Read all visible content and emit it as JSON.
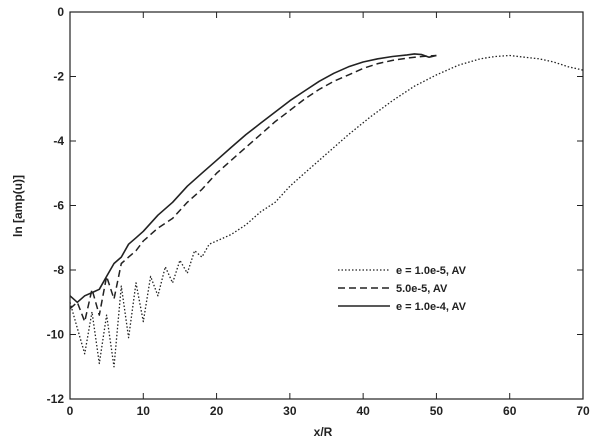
{
  "chart_data": {
    "type": "line",
    "title": "",
    "xlabel": "x/R",
    "ylabel": "ln [amp(u)]",
    "xlim": [
      0,
      70
    ],
    "ylim": [
      -12,
      0
    ],
    "xticks": [
      "0",
      "10",
      "20",
      "30",
      "40",
      "50",
      "60",
      "70"
    ],
    "yticks": [
      "0",
      "-2",
      "-4",
      "-6",
      "-8",
      "-10",
      "-12"
    ],
    "grid": false,
    "legend_position": "center-right",
    "series": [
      {
        "name": "e = 1.0e-5, AV",
        "style": "dotted",
        "x": [
          0,
          1,
          2,
          3,
          4,
          5,
          6,
          7,
          8,
          9,
          10,
          11,
          12,
          13,
          14,
          15,
          16,
          17,
          18,
          19,
          20,
          22,
          24,
          26,
          28,
          30,
          32,
          35,
          38,
          41,
          44,
          47,
          50,
          53,
          56,
          58,
          60,
          62,
          64,
          66,
          68,
          70
        ],
        "y": [
          -9.0,
          -9.8,
          -10.6,
          -9.3,
          -10.9,
          -9.4,
          -11.0,
          -8.5,
          -10.1,
          -8.4,
          -9.6,
          -8.2,
          -8.8,
          -7.9,
          -8.4,
          -7.7,
          -8.1,
          -7.4,
          -7.6,
          -7.2,
          -7.1,
          -6.9,
          -6.6,
          -6.2,
          -5.9,
          -5.4,
          -5.0,
          -4.4,
          -3.8,
          -3.25,
          -2.75,
          -2.3,
          -1.95,
          -1.65,
          -1.45,
          -1.38,
          -1.35,
          -1.4,
          -1.45,
          -1.55,
          -1.7,
          -1.8
        ]
      },
      {
        "name": "5.0e-5, AV",
        "style": "dashed",
        "x": [
          0,
          1,
          2,
          3,
          4,
          5,
          6,
          7,
          8,
          9,
          10,
          12,
          14,
          16,
          18,
          20,
          22,
          24,
          26,
          28,
          30,
          32,
          34,
          36,
          38,
          40,
          42,
          44,
          46,
          48,
          50
        ],
        "y": [
          -9.2,
          -9.0,
          -9.6,
          -8.6,
          -9.4,
          -8.2,
          -8.9,
          -7.8,
          -7.6,
          -7.4,
          -7.1,
          -6.7,
          -6.4,
          -5.9,
          -5.5,
          -5.0,
          -4.6,
          -4.2,
          -3.8,
          -3.4,
          -3.05,
          -2.7,
          -2.4,
          -2.15,
          -1.95,
          -1.75,
          -1.6,
          -1.5,
          -1.43,
          -1.38,
          -1.35
        ]
      },
      {
        "name": "e = 1.0e-4, AV",
        "style": "solid",
        "x": [
          0,
          1,
          2,
          3,
          4,
          5,
          6,
          7,
          8,
          9,
          10,
          12,
          14,
          16,
          18,
          20,
          22,
          24,
          26,
          28,
          30,
          32,
          34,
          36,
          38,
          40,
          42,
          44,
          46,
          47,
          48,
          49,
          50
        ],
        "y": [
          -8.8,
          -9.0,
          -8.8,
          -8.7,
          -8.6,
          -8.2,
          -7.8,
          -7.6,
          -7.2,
          -7.0,
          -6.8,
          -6.3,
          -5.9,
          -5.4,
          -5.0,
          -4.6,
          -4.2,
          -3.8,
          -3.45,
          -3.1,
          -2.75,
          -2.45,
          -2.15,
          -1.9,
          -1.7,
          -1.55,
          -1.45,
          -1.38,
          -1.33,
          -1.3,
          -1.32,
          -1.4,
          -1.35
        ]
      }
    ]
  }
}
